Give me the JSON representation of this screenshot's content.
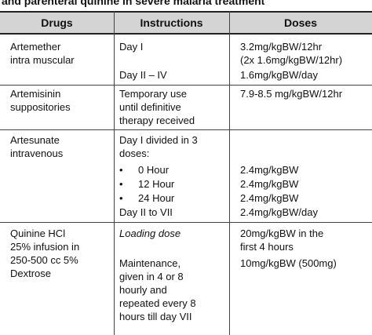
{
  "table": {
    "caption": "and parenteral quinine in severe malaria treatment",
    "headers": {
      "drugs": "Drugs",
      "instructions": "Instructions",
      "doses": "Doses"
    },
    "rows": [
      {
        "drug_lines": [
          "Artemether",
          "intra muscular"
        ],
        "instr": [
          "Day I",
          "Day II – IV"
        ],
        "dose": [
          "3.2mg/kgBW/12hr",
          "(2x 1.6mg/kgBW/12hr)",
          "1.6mg/kgBW/day"
        ]
      },
      {
        "drug_lines": [
          "Artemisinin",
          "suppositories"
        ],
        "instr": [
          "Temporary use",
          "until definitive",
          "therapy received"
        ],
        "dose": [
          "7.9-8.5 mg/kgBW/12hr"
        ]
      },
      {
        "drug_lines": [
          "Artesunate",
          "intravenous"
        ],
        "instr": [
          "Day I divided in 3",
          "doses:",
          "0 Hour",
          "12 Hour",
          "24 Hour",
          "Day II to VII"
        ],
        "bullet_glyph": "•",
        "dose": [
          "2.4mg/kgBW",
          "2.4mg/kgBW",
          "2.4mg/kgBW",
          "2.4mg/kgBW/day"
        ]
      },
      {
        "drug_lines": [
          "Quinine HCl",
          "25% infusion in",
          "250-500 cc 5%",
          "Dextrose"
        ],
        "instr": [
          "Loading dose",
          "Maintenance,",
          "given in 4 or 8",
          "hourly and",
          "repeated every 8",
          "hours till day VII"
        ],
        "dose": [
          "20mg/kgBW in the",
          "first 4 hours",
          "10mg/kgBW (500mg)"
        ]
      }
    ]
  }
}
